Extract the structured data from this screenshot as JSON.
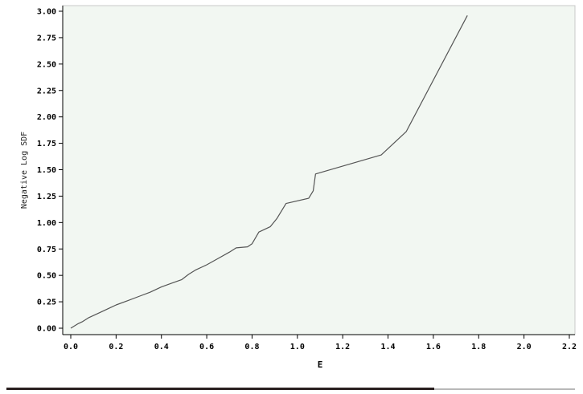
{
  "chart_data": {
    "type": "line",
    "title": "",
    "xlabel": "E",
    "ylabel": "Negative Log SDF",
    "xlim": [
      -0.05,
      2.22
    ],
    "ylim": [
      -0.05,
      3.02
    ],
    "xticks": [
      0.0,
      0.2,
      0.4,
      0.6,
      0.8,
      1.0,
      1.2,
      1.4,
      1.6,
      1.8,
      2.0,
      2.2
    ],
    "xtick_labels": [
      "0.0",
      "0.2",
      "0.4",
      "0.6",
      "0.8",
      "1.0",
      "1.2",
      "1.4",
      "1.6",
      "1.8",
      "2.0",
      "2.2"
    ],
    "yticks": [
      0.0,
      0.25,
      0.5,
      0.75,
      1.0,
      1.25,
      1.5,
      1.75,
      2.0,
      2.25,
      2.5,
      2.75,
      3.0
    ],
    "ytick_labels": [
      "0.00",
      "0.25",
      "0.50",
      "0.75",
      "1.00",
      "1.25",
      "1.50",
      "1.75",
      "2.00",
      "2.25",
      "2.50",
      "2.75",
      "3.00"
    ],
    "grid": false,
    "legend": "none",
    "colors": {
      "background": "#f2f7f2",
      "line": "#555555",
      "axis": "#000000"
    },
    "series": [
      {
        "x": [
          0.0,
          0.03,
          0.05,
          0.08,
          0.1,
          0.13,
          0.16,
          0.18,
          0.2,
          0.25,
          0.3,
          0.35,
          0.4,
          0.45,
          0.49,
          0.52,
          0.55,
          0.6,
          0.65,
          0.7,
          0.73,
          0.78,
          0.8,
          0.83,
          0.86,
          0.88,
          0.91,
          0.95,
          1.05,
          1.07,
          1.08,
          1.37,
          1.48,
          1.75
        ],
        "y": [
          0.0,
          0.04,
          0.06,
          0.1,
          0.12,
          0.15,
          0.18,
          0.2,
          0.22,
          0.26,
          0.3,
          0.34,
          0.39,
          0.43,
          0.46,
          0.51,
          0.55,
          0.6,
          0.66,
          0.72,
          0.76,
          0.77,
          0.8,
          0.91,
          0.94,
          0.96,
          1.04,
          1.18,
          1.23,
          1.3,
          1.46,
          1.64,
          1.86,
          2.96
        ]
      }
    ]
  }
}
